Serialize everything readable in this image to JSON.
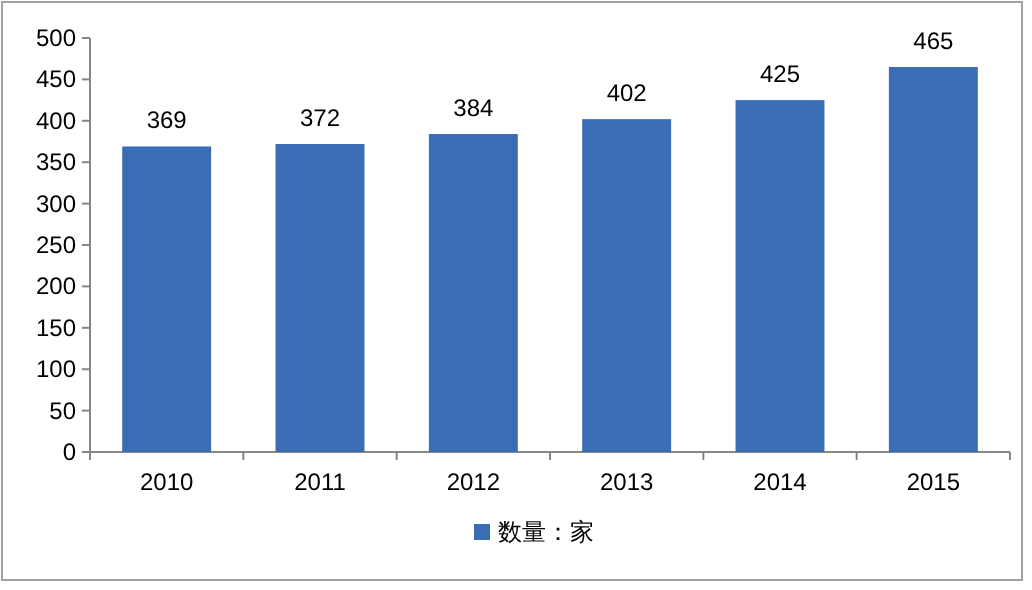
{
  "chart_data": {
    "type": "bar",
    "categories": [
      "2010",
      "2011",
      "2012",
      "2013",
      "2014",
      "2015"
    ],
    "series": [
      {
        "name": "数量：家",
        "color": "#3a6db3",
        "values": [
          369,
          372,
          384,
          402,
          425,
          465
        ]
      }
    ],
    "ylim": [
      0,
      500
    ],
    "yticks": [
      0,
      50,
      100,
      150,
      200,
      250,
      300,
      350,
      400,
      450,
      500
    ],
    "grid": false,
    "legend": "bottom",
    "data_labels": true
  }
}
